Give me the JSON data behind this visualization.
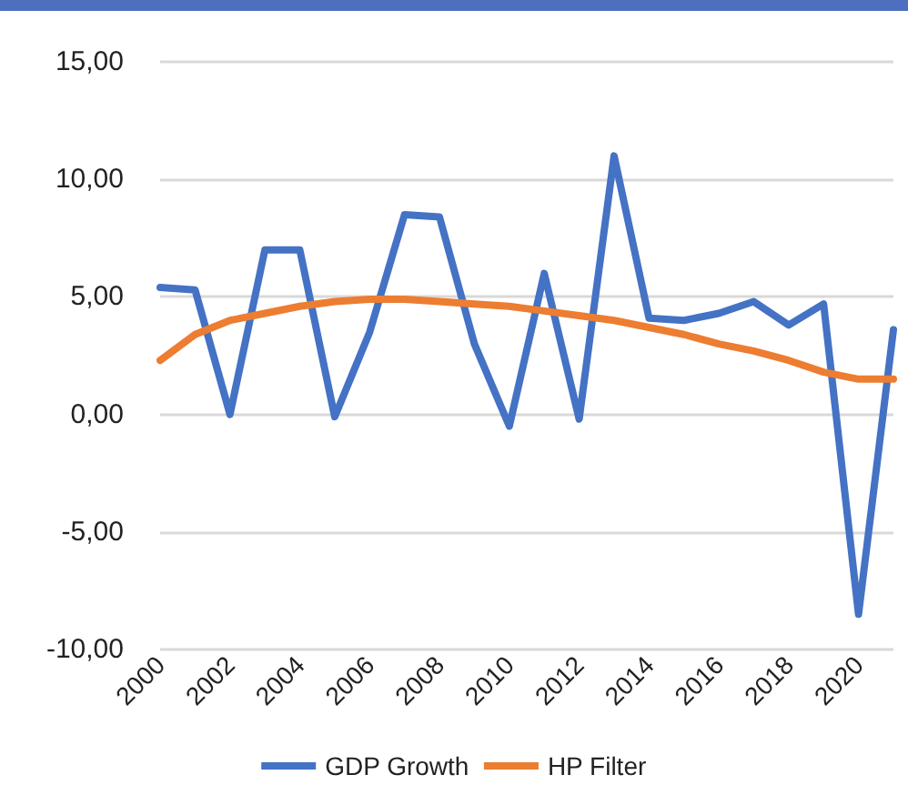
{
  "chart_data": {
    "type": "line",
    "categories": [
      "2000",
      null,
      "2002",
      null,
      "2004",
      null,
      "2006",
      null,
      "2008",
      null,
      "2010",
      null,
      "2012",
      null,
      "2014",
      null,
      "2016",
      null,
      "2018",
      null,
      "2020",
      null
    ],
    "series": [
      {
        "name": "GDP Growth",
        "color": "#4472c4",
        "values": [
          5.4,
          5.3,
          0.0,
          7.0,
          7.0,
          -0.1,
          3.5,
          8.5,
          8.4,
          3.0,
          -0.5,
          6.0,
          -0.2,
          11.0,
          4.1,
          4.0,
          4.3,
          4.8,
          3.8,
          4.7,
          -8.5,
          3.6
        ]
      },
      {
        "name": "HP Filter",
        "color": "#ed7d31",
        "values": [
          2.3,
          3.4,
          4.0,
          4.3,
          4.6,
          4.8,
          4.9,
          4.9,
          4.8,
          4.7,
          4.6,
          4.4,
          4.2,
          4.0,
          3.7,
          3.4,
          3.0,
          2.7,
          2.3,
          1.8,
          1.5,
          1.5
        ]
      }
    ],
    "ylim": [
      -10,
      15
    ],
    "yticks": [
      {
        "value": -10,
        "label": "-10,00"
      },
      {
        "value": -5,
        "label": "-5,00"
      },
      {
        "value": 0,
        "label": "0,00"
      },
      {
        "value": 5,
        "label": "5,00"
      },
      {
        "value": 10,
        "label": "10,00"
      },
      {
        "value": 15,
        "label": "15,00"
      }
    ],
    "grid": "y",
    "legend": "bottom",
    "marker": "none",
    "line_style": "solid"
  }
}
